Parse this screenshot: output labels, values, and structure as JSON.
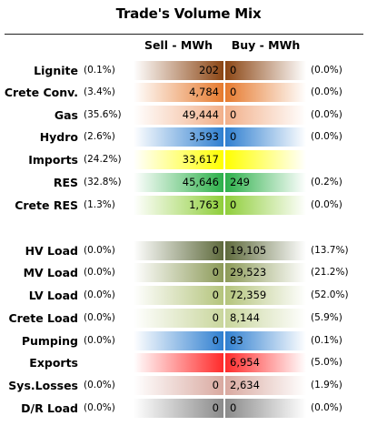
{
  "title": "Trade's Volume Mix",
  "columns": {
    "sell": "Sell - MWh",
    "buy": "Buy - MWh"
  },
  "chart_data": {
    "type": "table",
    "title": "Trade's Volume Mix",
    "columns": [
      "Sell - MWh",
      "Buy - MWh"
    ],
    "rows": [
      {
        "label": "Lignite",
        "sell_pct": "(0.1%)",
        "sell": "202",
        "buy": "0",
        "buy_pct": "(0.0%)",
        "sell_color": "#8b4513",
        "buy_color": "#8b4513"
      },
      {
        "label": "Crete Conv.",
        "sell_pct": "(3.4%)",
        "sell": "4,784",
        "buy": "0",
        "buy_pct": "(0.0%)",
        "sell_color": "#e67a2e",
        "buy_color": "#e67a2e"
      },
      {
        "label": "Gas",
        "sell_pct": "(35.6%)",
        "sell": "49,444",
        "buy": "0",
        "buy_pct": "(0.0%)",
        "sell_color": "#f2b08a",
        "buy_color": "#f2b08a"
      },
      {
        "label": "Hydro",
        "sell_pct": "(2.6%)",
        "sell": "3,593",
        "buy": "0",
        "buy_pct": "(0.0%)",
        "sell_color": "#2f7fd0",
        "buy_color": "#2f7fd0"
      },
      {
        "label": "Imports",
        "sell_pct": "(24.2%)",
        "sell": "33,617",
        "buy": "",
        "buy_pct": "",
        "sell_color": "#ffff00",
        "buy_color": "#ffff00"
      },
      {
        "label": "RES",
        "sell_pct": "(32.8%)",
        "sell": "45,646",
        "buy": "249",
        "buy_pct": "(0.2%)",
        "sell_color": "#2db04a",
        "buy_color": "#2db04a"
      },
      {
        "label": "Crete RES",
        "sell_pct": "(1.3%)",
        "sell": "1,763",
        "buy": "0",
        "buy_pct": "(0.0%)",
        "sell_color": "#8fce3a",
        "buy_color": "#8fce3a"
      },
      {
        "label": "HV Load",
        "sell_pct": "(0.0%)",
        "sell": "0",
        "buy": "19,105",
        "buy_pct": "(13.7%)",
        "sell_color": "#5e6a3c",
        "buy_color": "#5e6a3c"
      },
      {
        "label": "MV Load",
        "sell_pct": "(0.0%)",
        "sell": "0",
        "buy": "29,523",
        "buy_pct": "(21.2%)",
        "sell_color": "#8c9a58",
        "buy_color": "#8c9a58"
      },
      {
        "label": "LV Load",
        "sell_pct": "(0.0%)",
        "sell": "0",
        "buy": "72,359",
        "buy_pct": "(52.0%)",
        "sell_color": "#b4c47c",
        "buy_color": "#b4c47c"
      },
      {
        "label": "Crete Load",
        "sell_pct": "(0.0%)",
        "sell": "0",
        "buy": "8,144",
        "buy_pct": "(5.9%)",
        "sell_color": "#c9d69d",
        "buy_color": "#c9d69d"
      },
      {
        "label": "Pumping",
        "sell_pct": "(0.0%)",
        "sell": "0",
        "buy": "83",
        "buy_pct": "(0.1%)",
        "sell_color": "#2f7fd0",
        "buy_color": "#2f7fd0"
      },
      {
        "label": "Exports",
        "sell_pct": "",
        "sell": "",
        "buy": "6,954",
        "buy_pct": "(5.0%)",
        "sell_color": "#ff2a2a",
        "buy_color": "#ff2a2a"
      },
      {
        "label": "Sys.Losses",
        "sell_pct": "(0.0%)",
        "sell": "0",
        "buy": "2,634",
        "buy_pct": "(1.9%)",
        "sell_color": "#d9a9a0",
        "buy_color": "#d9a9a0"
      },
      {
        "label": "D/R Load",
        "sell_pct": "(0.0%)",
        "sell": "0",
        "buy": "0",
        "buy_pct": "(0.0%)",
        "sell_color": "#8a8a8a",
        "buy_color": "#8a8a8a"
      }
    ]
  }
}
